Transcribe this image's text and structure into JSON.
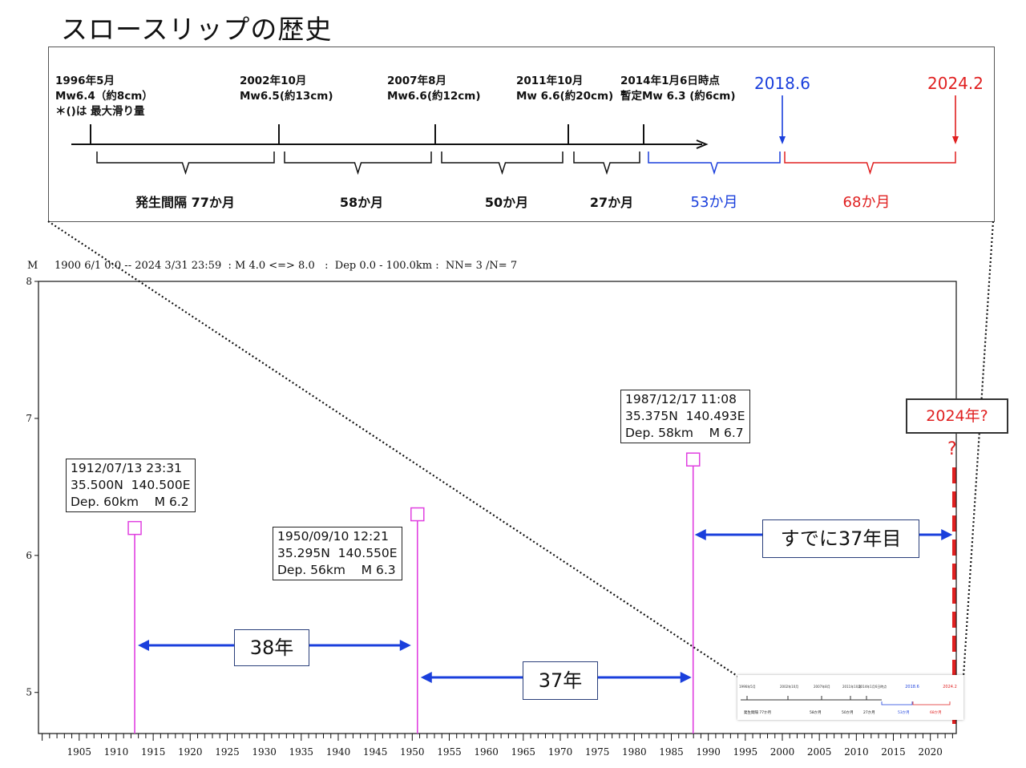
{
  "title": "スロースリップの歴史",
  "colors": {
    "blue": "#1a3fdc",
    "red": "#e02020",
    "magenta": "#e040e0",
    "black": "#111111"
  },
  "timeline": {
    "events": [
      {
        "lines": [
          "1996年5月",
          "Mw6.4（約8cm）",
          "＊()は 最大滑り量"
        ]
      },
      {
        "lines": [
          "2002年10月",
          "Mw6.5(約13cm)"
        ]
      },
      {
        "lines": [
          "2007年8月",
          "Mw6.6(約12cm)"
        ]
      },
      {
        "lines": [
          "2011年10月",
          "Mw 6.6(約20cm)"
        ]
      },
      {
        "lines": [
          "2014年1月6日時点",
          "暫定Mw 6.3 (約6cm)"
        ]
      }
    ],
    "forecast_points": [
      {
        "label": "2018.6",
        "color": "#1a3fdc"
      },
      {
        "label": "2024.2",
        "color": "#e02020"
      }
    ],
    "intervals": [
      {
        "label": "発生間隔 77か月",
        "color": "#111111"
      },
      {
        "label": "58か月",
        "color": "#111111"
      },
      {
        "label": "50か月",
        "color": "#111111"
      },
      {
        "label": "27か月",
        "color": "#111111"
      },
      {
        "label": "53か月",
        "color": "#1a3fdc"
      },
      {
        "label": "68か月",
        "color": "#e02020"
      }
    ]
  },
  "chart_header": "M     1900 6/1 0:0 -- 2024 3/31 23:59  : M 4.0 <=> 8.0   :  Dep 0.0 - 100.0km :  NN= 3 /N= 7",
  "chart_data": {
    "type": "scatter",
    "ylabel": "M",
    "xlim": [
      1899.5,
      2023.5
    ],
    "ylim": [
      4.7,
      8
    ],
    "yticks": [
      5,
      6,
      7,
      8
    ],
    "xticks": [
      1905,
      1910,
      1915,
      1920,
      1925,
      1930,
      1935,
      1940,
      1945,
      1950,
      1955,
      1960,
      1965,
      1970,
      1975,
      1980,
      1985,
      1990,
      1995,
      2000,
      2005,
      2010,
      2015,
      2020
    ],
    "points": [
      {
        "x": 1912.5,
        "y": 6.2,
        "lines": [
          "1912/07/13 23:31",
          "35.500N  140.500E",
          "Dep. 60km    M 6.2"
        ]
      },
      {
        "x": 1950.7,
        "y": 6.3,
        "lines": [
          "1950/09/10 12:21",
          "35.295N  140.550E",
          "Dep. 56km    M 6.3"
        ]
      },
      {
        "x": 1987.95,
        "y": 6.7,
        "lines": [
          "1987/12/17 11:08",
          "35.375N  140.493E",
          "Dep. 58km    M 6.7"
        ]
      }
    ],
    "intervals": [
      {
        "label": "38年"
      },
      {
        "label": "37年"
      },
      {
        "label": "すでに37年目"
      }
    ],
    "forecast": {
      "label": "2024年?",
      "mark": "?",
      "x": 2023.2
    }
  }
}
